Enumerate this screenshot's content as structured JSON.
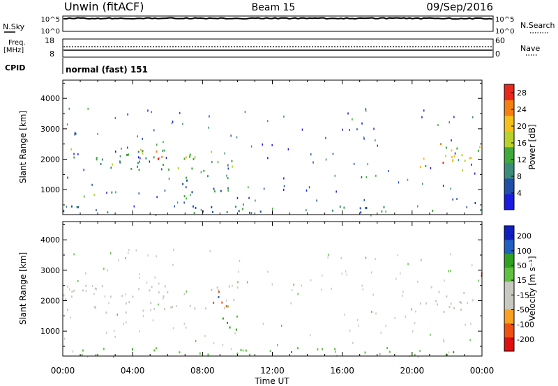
{
  "header": {
    "station": "Unwin (fitACF)",
    "beam": "Beam 15",
    "date": "09/Sep/2016"
  },
  "top_panels": {
    "nsky_label": "N.Sky",
    "nsky_ticks": [
      "10^5",
      "10^0"
    ],
    "nsearch_label": "N.Search",
    "freq_label_1": "Freq.",
    "freq_label_2": "[MHz]",
    "freq_ticks": [
      "18",
      "8"
    ],
    "nave_label": "Nave",
    "nave_ticks": [
      "60",
      "0"
    ],
    "cpid_label": "CPID",
    "cpid_value": "normal (fast) 151"
  },
  "colors": {
    "power": [
      "#1a1ae0",
      "#1f4fa8",
      "#3c8c7a",
      "#3faa3a",
      "#b8d22a",
      "#f5c01a",
      "#f57f10",
      "#e8281a"
    ],
    "velocity": [
      "#e01010",
      "#f05010",
      "#f8a020",
      "#c8c8c0",
      "#c8c8c0",
      "#60c040",
      "#30a020",
      "#2060c0",
      "#1020c0"
    ]
  },
  "chart_data": [
    {
      "type": "heatmap",
      "name": "power",
      "xlabel": "",
      "ylabel": "Slant Range [km]",
      "x_range": [
        "00:00",
        "24:00"
      ],
      "ylim": [
        180,
        4600
      ],
      "yticks": [
        1000,
        2000,
        3000,
        4000
      ],
      "xticks": [
        "00:00",
        "04:00",
        "08:00",
        "12:00",
        "16:00",
        "20:00",
        "00:00"
      ],
      "colorbar": {
        "label": "Power [dB]",
        "ticks": [
          4,
          8,
          12,
          16,
          20,
          24,
          28
        ],
        "range": [
          0,
          30
        ]
      },
      "regions": [
        {
          "t0": 0.0,
          "t1": 10.0,
          "r0": 1600,
          "r1": 2400,
          "level": 12,
          "desc": "main band"
        },
        {
          "t0": 4.2,
          "t1": 7.4,
          "r0": 1850,
          "r1": 2350,
          "level": 22
        },
        {
          "t0": 20.0,
          "t1": 24.0,
          "r0": 1600,
          "r1": 2500,
          "level": 18
        },
        {
          "t0": 20.8,
          "t1": 23.6,
          "r0": 1800,
          "r1": 2200,
          "level": 24
        },
        {
          "t0": 6.6,
          "t1": 9.8,
          "r0": 700,
          "r1": 1450,
          "level": 10
        },
        {
          "t0": 1.6,
          "t1": 2.8,
          "r0": 800,
          "r1": 1100,
          "level": 12
        },
        {
          "t0": 0.0,
          "t1": 24.0,
          "r0": 200,
          "r1": 450,
          "level": 8
        }
      ]
    },
    {
      "type": "heatmap",
      "name": "velocity",
      "xlabel": "Time UT",
      "ylabel": "Slant Range [km]",
      "x_range": [
        "00:00",
        "24:00"
      ],
      "ylim": [
        180,
        4600
      ],
      "yticks": [
        1000,
        2000,
        3000,
        4000
      ],
      "xticks": [
        "00:00",
        "04:00",
        "08:00",
        "12:00",
        "16:00",
        "20:00",
        "00:00"
      ],
      "colorbar": {
        "label": "Velocity [m s⁻¹]",
        "ticks": [
          200,
          100,
          50,
          15,
          -15,
          -50,
          -100,
          -200
        ]
      },
      "regions": [
        {
          "t0": 0.0,
          "t1": 10.0,
          "r0": 1600,
          "r1": 2500,
          "velocity": 0
        },
        {
          "t0": 8.2,
          "t1": 9.8,
          "r0": 1800,
          "r1": 2400,
          "velocity": -150
        },
        {
          "t0": 8.8,
          "t1": 9.6,
          "r0": 1900,
          "r1": 2300,
          "velocity": 200
        },
        {
          "t0": 20.0,
          "t1": 24.0,
          "r0": 1600,
          "r1": 2500,
          "velocity": 0
        },
        {
          "t0": 22.2,
          "t1": 24.0,
          "r0": 2750,
          "r1": 3000,
          "velocity": -200
        },
        {
          "t0": 8.0,
          "t1": 10.0,
          "r0": 1000,
          "r1": 1500,
          "velocity": 60
        },
        {
          "t0": 0.0,
          "t1": 24.0,
          "r0": 200,
          "r1": 450,
          "velocity": 40
        }
      ]
    }
  ]
}
